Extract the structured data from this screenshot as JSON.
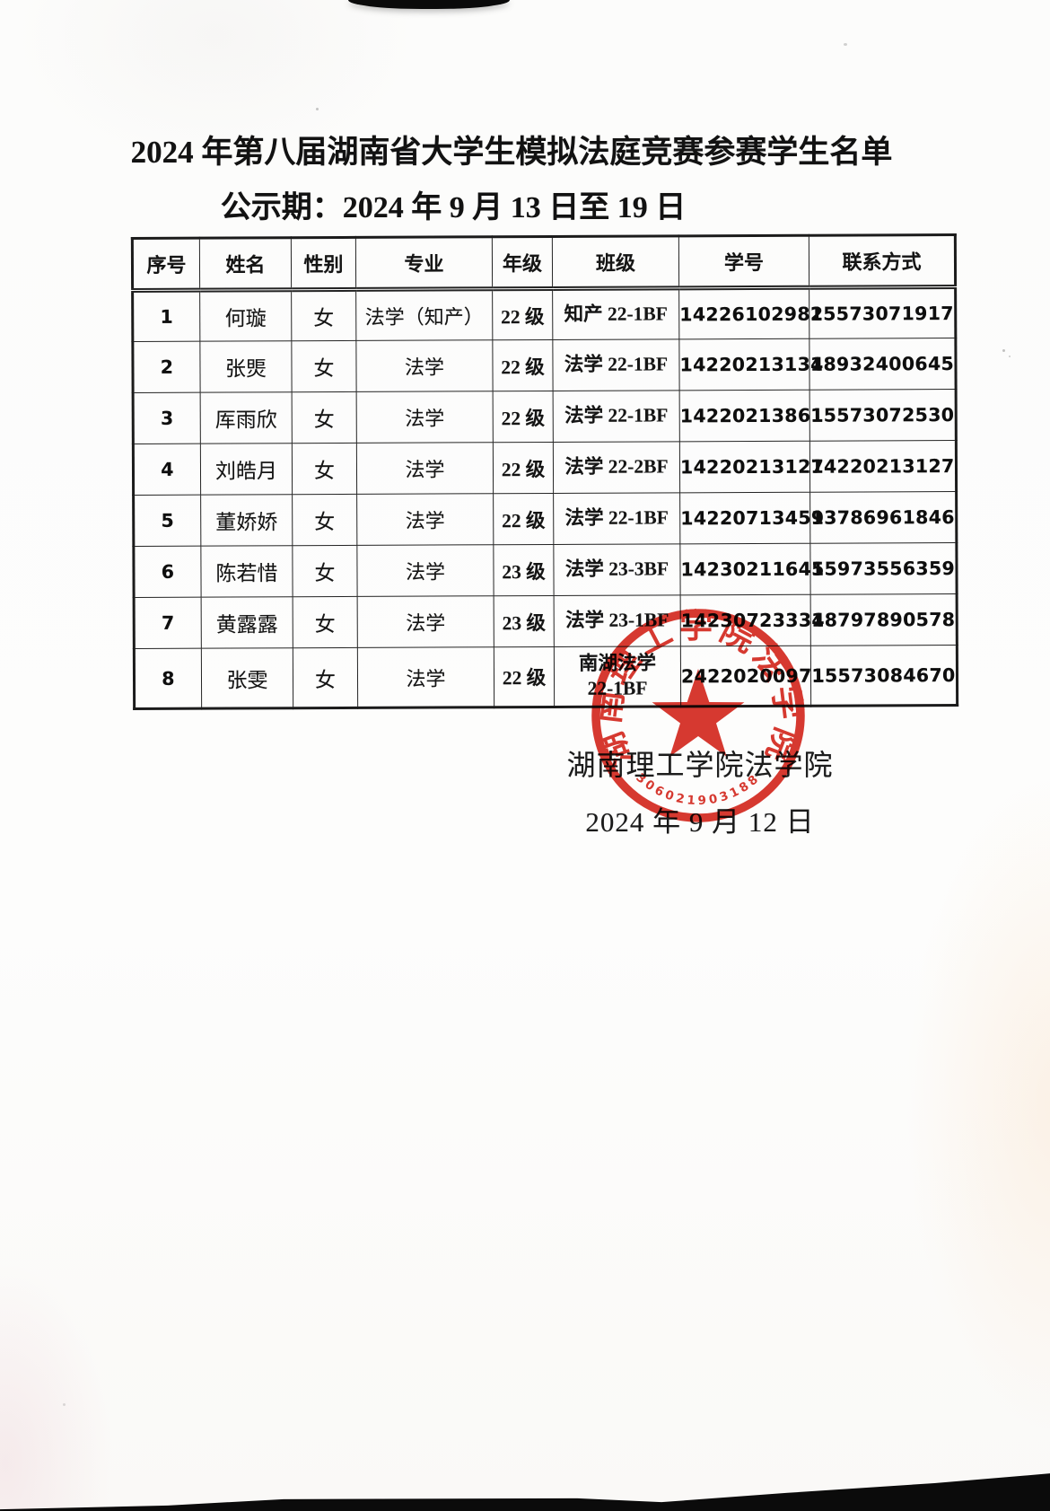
{
  "document": {
    "title": "2024 年第八届湖南省大学生模拟法庭竞赛参赛学生名单",
    "publicity_period": "公示期：2024 年 9 月 13 日至 19 日",
    "issuer": "湖南理工学院法学院",
    "issue_date": "2024 年 9 月 12 日"
  },
  "table": {
    "headers": [
      "序号",
      "姓名",
      "性别",
      "专业",
      "年级",
      "班级",
      "学号",
      "联系方式"
    ],
    "rows": [
      [
        "1",
        "何璇",
        "女",
        "法学（知产）",
        "22 级",
        "知产 22-1BF",
        "14226102982",
        "15573071917"
      ],
      [
        "2",
        "张煚",
        "女",
        "法学",
        "22 级",
        "法学 22-1BF",
        "14220213134",
        "18932400645"
      ],
      [
        "3",
        "厍雨欣",
        "女",
        "法学",
        "22 级",
        "法学 22-1BF",
        "14220213861",
        "15573072530"
      ],
      [
        "4",
        "刘皓月",
        "女",
        "法学",
        "22 级",
        "法学 22-2BF",
        "14220213127",
        "14220213127"
      ],
      [
        "5",
        "董娇娇",
        "女",
        "法学",
        "22 级",
        "法学 22-1BF",
        "14220713459",
        "13786961846"
      ],
      [
        "6",
        "陈若惜",
        "女",
        "法学",
        "23 级",
        "法学 23-3BF",
        "14230211645",
        "15973556359"
      ],
      [
        "7",
        "黄露露",
        "女",
        "法学",
        "23 级",
        "法学 23-1BF",
        "14230723334",
        "18797890578"
      ],
      [
        "8",
        "张雯",
        "女",
        "法学",
        "22 级",
        "南湖法学\n22-1BF",
        "24220200971",
        "15573084670"
      ]
    ]
  },
  "seal": {
    "ring_text": "湖南理工学院法学院",
    "serial_number": "306021903188",
    "color": "#d5281e"
  }
}
